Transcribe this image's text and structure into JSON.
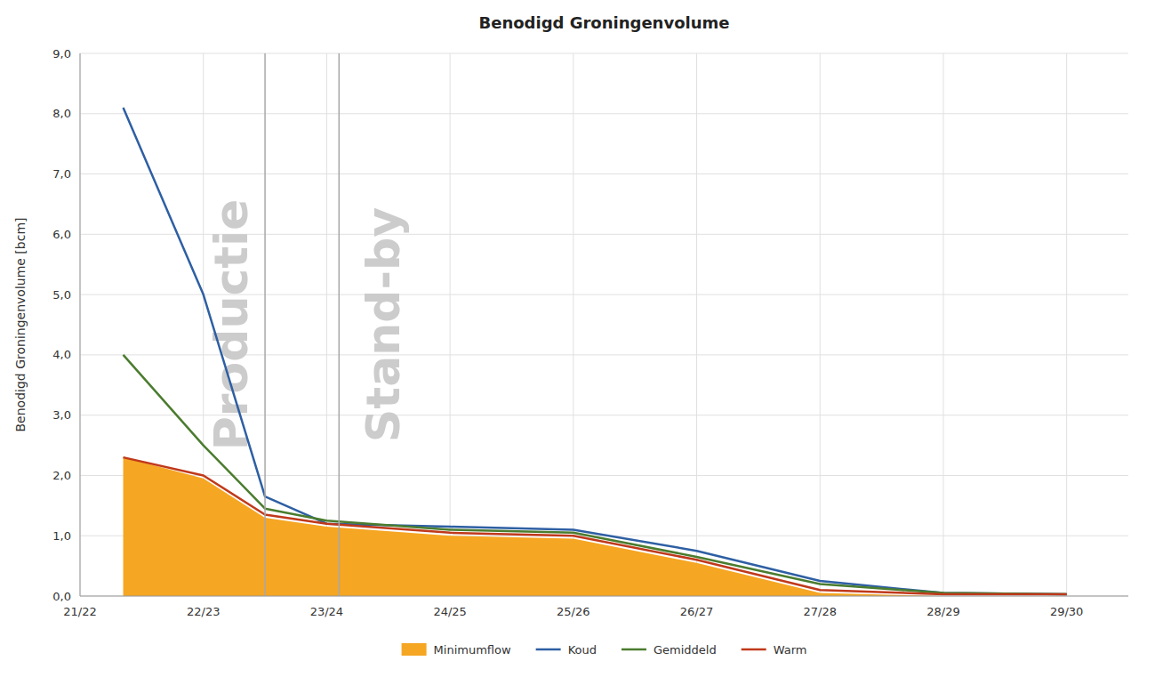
{
  "chart_data": {
    "type": "line",
    "title": "Benodigd Groningenvolume",
    "y_label": "Benodigd Groningenvolume [bcm]",
    "xlim": [
      0.0,
      8.5
    ],
    "xticks": [
      {
        "value": 0,
        "label": "21/22"
      },
      {
        "value": 1,
        "label": "22/23"
      },
      {
        "value": 2,
        "label": "23/24"
      },
      {
        "value": 3,
        "label": "24/25"
      },
      {
        "value": 4,
        "label": "25/26"
      },
      {
        "value": 5,
        "label": "26/27"
      },
      {
        "value": 6,
        "label": "27/28"
      },
      {
        "value": 7,
        "label": "28/29"
      },
      {
        "value": 8,
        "label": "29/30"
      }
    ],
    "ylim": [
      0.0,
      9.0
    ],
    "yticks": [
      {
        "value": 0.0,
        "label": "0,0"
      },
      {
        "value": 1.0,
        "label": "1,0"
      },
      {
        "value": 2.0,
        "label": "2,0"
      },
      {
        "value": 3.0,
        "label": "3,0"
      },
      {
        "value": 4.0,
        "label": "4,0"
      },
      {
        "value": 5.0,
        "label": "5,0"
      },
      {
        "value": 6.0,
        "label": "6,0"
      },
      {
        "value": 7.0,
        "label": "7,0"
      },
      {
        "value": 8.0,
        "label": "8,0"
      },
      {
        "value": 9.0,
        "label": "9,0"
      }
    ],
    "grid": true,
    "legend": "bottom",
    "series": [
      {
        "name": "Minimumflow",
        "type": "area",
        "color": "#f5a623",
        "x": [
          0.35,
          1.0,
          1.5,
          2.0,
          3.0,
          4.0,
          5.0,
          6.0,
          7.0,
          8.0
        ],
        "values": [
          2.3,
          1.95,
          1.3,
          1.15,
          1.0,
          0.95,
          0.55,
          0.05,
          0.0,
          0.0
        ]
      },
      {
        "name": "Koud",
        "type": "line",
        "color": "#2e5fa3",
        "x": [
          0.35,
          1.0,
          1.5,
          2.0,
          3.0,
          4.0,
          5.0,
          6.0,
          7.0,
          8.0
        ],
        "values": [
          8.1,
          5.0,
          1.65,
          1.2,
          1.15,
          1.1,
          0.75,
          0.25,
          0.05,
          0.03
        ]
      },
      {
        "name": "Gemiddeld",
        "type": "line",
        "color": "#4a7c2e",
        "x": [
          0.35,
          1.0,
          1.5,
          2.0,
          3.0,
          4.0,
          5.0,
          6.0,
          7.0,
          8.0
        ],
        "values": [
          4.0,
          2.5,
          1.45,
          1.25,
          1.1,
          1.05,
          0.65,
          0.2,
          0.05,
          0.03
        ]
      },
      {
        "name": "Warm",
        "type": "line",
        "color": "#c0391b",
        "x": [
          0.35,
          1.0,
          1.5,
          2.0,
          3.0,
          4.0,
          5.0,
          6.0,
          7.0,
          8.0
        ],
        "values": [
          2.3,
          2.0,
          1.35,
          1.2,
          1.05,
          1.0,
          0.6,
          0.1,
          0.03,
          0.03
        ]
      }
    ],
    "annotations": [
      {
        "text": "Productie",
        "x": 1.5
      },
      {
        "text": "Stand-by",
        "x": 2.1
      }
    ]
  }
}
